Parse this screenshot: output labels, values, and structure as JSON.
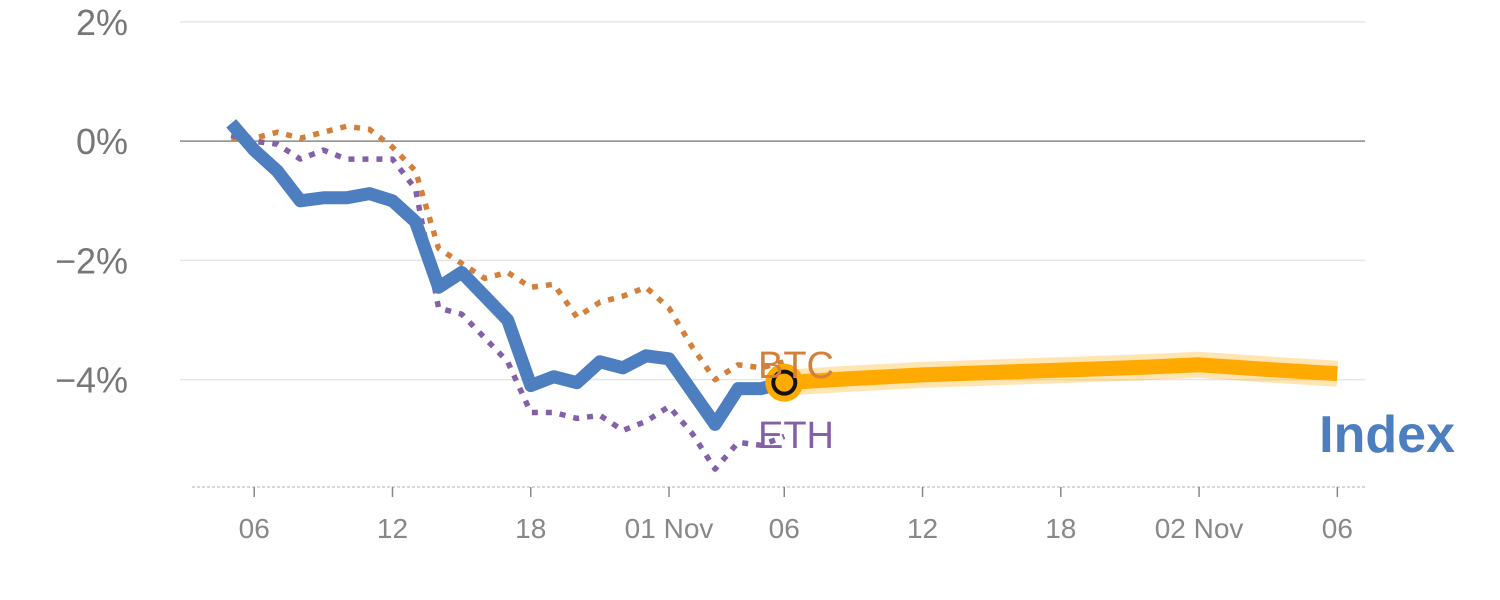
{
  "chart_data": {
    "type": "line",
    "ylim": [
      -5.8,
      2.2
    ],
    "y_ticks": [
      {
        "value": 2,
        "label": "2%"
      },
      {
        "value": 0,
        "label": "0%"
      },
      {
        "value": -2,
        "label": "−2%"
      },
      {
        "value": -4,
        "label": "−4%"
      }
    ],
    "x_ticks": [
      {
        "value": 6,
        "label": "06"
      },
      {
        "value": 12,
        "label": "12"
      },
      {
        "value": 18,
        "label": "18"
      },
      {
        "value": 24,
        "label": "01 Nov"
      },
      {
        "value": 29,
        "label": "06"
      },
      {
        "value": 35,
        "label": "12"
      },
      {
        "value": 41,
        "label": "18"
      },
      {
        "value": 47,
        "label": "02 Nov"
      },
      {
        "value": 53,
        "label": "06"
      }
    ],
    "x_range": [
      3.3,
      54.2
    ],
    "grid": true,
    "series": [
      {
        "name": "Index",
        "color": "#4d7ebf",
        "style": "solid",
        "x": [
          5,
          6,
          7,
          8,
          9,
          10,
          11,
          12,
          13,
          14,
          15,
          16,
          17,
          18,
          19,
          20,
          21,
          22,
          23,
          24,
          25,
          26,
          27,
          28,
          29
        ],
        "y": [
          0.3,
          -0.15,
          -0.5,
          -1.0,
          -0.95,
          -0.95,
          -0.88,
          -1.0,
          -1.35,
          -2.45,
          -2.2,
          -2.6,
          -3.0,
          -4.1,
          -3.95,
          -4.05,
          -3.7,
          -3.8,
          -3.6,
          -3.65,
          -4.2,
          -4.75,
          -4.15,
          -4.15,
          -4.05
        ]
      },
      {
        "name": "BTC",
        "color": "#d4803a",
        "style": "dotted",
        "x": [
          5,
          6,
          7,
          8,
          9,
          10,
          11,
          12,
          13,
          14,
          15,
          16,
          17,
          18,
          19,
          20,
          21,
          22,
          23,
          24,
          25,
          26,
          27,
          28,
          29
        ],
        "y": [
          0.05,
          0.05,
          0.15,
          0.05,
          0.15,
          0.25,
          0.2,
          -0.1,
          -0.5,
          -1.8,
          -2.05,
          -2.3,
          -2.2,
          -2.45,
          -2.4,
          -2.95,
          -2.7,
          -2.6,
          -2.45,
          -2.8,
          -3.45,
          -4.0,
          -3.75,
          -3.8,
          -3.7
        ]
      },
      {
        "name": "ETH",
        "color": "#8460a8",
        "style": "dotted",
        "x": [
          5,
          6,
          7,
          8,
          9,
          10,
          11,
          12,
          13,
          14,
          15,
          16,
          17,
          18,
          19,
          20,
          21,
          22,
          23,
          24,
          25,
          26,
          27,
          28,
          29
        ],
        "y": [
          0.1,
          0.0,
          -0.05,
          -0.3,
          -0.15,
          -0.3,
          -0.3,
          -0.3,
          -0.8,
          -2.8,
          -2.9,
          -3.3,
          -3.7,
          -4.55,
          -4.55,
          -4.65,
          -4.6,
          -4.85,
          -4.7,
          -4.45,
          -4.9,
          -5.5,
          -5.05,
          -5.1,
          -4.95
        ]
      },
      {
        "name": "Index forecast",
        "color": "#ffaa00",
        "style": "band",
        "x": [
          29,
          32,
          35,
          38,
          41,
          44,
          47,
          50,
          53
        ],
        "y": [
          -4.05,
          -3.98,
          -3.92,
          -3.88,
          -3.84,
          -3.8,
          -3.75,
          -3.83,
          -3.9
        ]
      }
    ],
    "labels": {
      "btc": "BTC",
      "eth": "ETH",
      "index": "Index"
    },
    "marker": {
      "x": 29,
      "y": -4.05
    }
  }
}
